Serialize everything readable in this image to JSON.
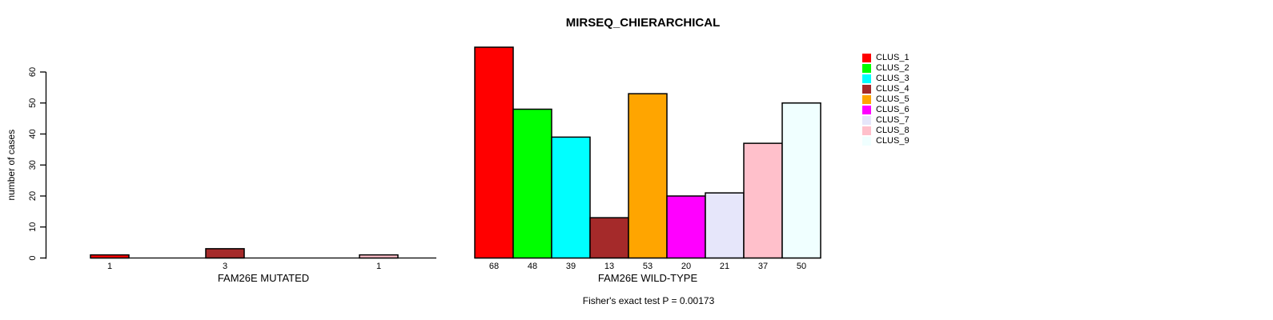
{
  "chart_data": {
    "type": "bar",
    "title": "MIRSEQ_CHIERARCHICAL",
    "ylabel": "number of cases",
    "ylim": [
      0,
      60
    ],
    "yticks": [
      0,
      10,
      20,
      30,
      40,
      50,
      60
    ],
    "grid": false,
    "categories": [
      "CLUS_1",
      "CLUS_2",
      "CLUS_3",
      "CLUS_4",
      "CLUS_5",
      "CLUS_6",
      "CLUS_7",
      "CLUS_8",
      "CLUS_9"
    ],
    "legend": {
      "position": "right",
      "entries": [
        {
          "label": "CLUS_1",
          "color": "#FF0000"
        },
        {
          "label": "CLUS_2",
          "color": "#00FF00"
        },
        {
          "label": "CLUS_3",
          "color": "#00FFFF"
        },
        {
          "label": "CLUS_4",
          "color": "#A52A2A"
        },
        {
          "label": "CLUS_5",
          "color": "#FFA500"
        },
        {
          "label": "CLUS_6",
          "color": "#FF00FF"
        },
        {
          "label": "CLUS_7",
          "color": "#E6E6FA"
        },
        {
          "label": "CLUS_8",
          "color": "#FFC0CB"
        },
        {
          "label": "CLUS_9",
          "color": "#F0FFFF"
        }
      ]
    },
    "panels": [
      {
        "xlabel": "FAM26E MUTATED",
        "values": [
          1,
          0,
          0,
          3,
          0,
          0,
          0,
          1,
          0
        ],
        "bar_labels": [
          "1",
          "",
          "",
          "3",
          "",
          "",
          "",
          "1",
          ""
        ]
      },
      {
        "xlabel": "FAM26E WILD-TYPE",
        "values": [
          68,
          48,
          39,
          13,
          53,
          20,
          21,
          37,
          50
        ],
        "bar_labels": [
          "68",
          "48",
          "39",
          "13",
          "53",
          "20",
          "21",
          "37",
          "50"
        ]
      }
    ],
    "footnote": "Fisher's exact test P = 0.00173"
  }
}
